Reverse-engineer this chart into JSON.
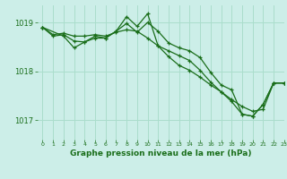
{
  "title": "Graphe pression niveau de la mer (hPa)",
  "background_color": "#cceee8",
  "grid_color": "#aaddcc",
  "line_color": "#1a6e1a",
  "xlim": [
    -0.5,
    23
  ],
  "ylim": [
    1016.6,
    1019.35
  ],
  "yticks": [
    1017,
    1018,
    1019
  ],
  "xticks": [
    0,
    1,
    2,
    3,
    4,
    5,
    6,
    7,
    8,
    9,
    10,
    11,
    12,
    13,
    14,
    15,
    16,
    17,
    18,
    19,
    20,
    21,
    22,
    23
  ],
  "series1_x": [
    0,
    1,
    2,
    3,
    4,
    5,
    6,
    7,
    8,
    9,
    10,
    11,
    12,
    13,
    14,
    15,
    16,
    17,
    18,
    19,
    20,
    21,
    22,
    23
  ],
  "series1_y": [
    1018.9,
    1018.75,
    1018.78,
    1018.72,
    1018.72,
    1018.75,
    1018.72,
    1018.8,
    1018.85,
    1018.82,
    1018.68,
    1018.52,
    1018.3,
    1018.12,
    1018.02,
    1017.88,
    1017.72,
    1017.58,
    1017.42,
    1017.28,
    1017.18,
    1017.22,
    1017.76,
    1017.76
  ],
  "series2_x": [
    0,
    1,
    2,
    3,
    4,
    5,
    6,
    7,
    8,
    9,
    10,
    11,
    12,
    13,
    14,
    15,
    16,
    17,
    18,
    19,
    20,
    21,
    22,
    23
  ],
  "series2_y": [
    1018.9,
    1018.72,
    1018.75,
    1018.62,
    1018.6,
    1018.68,
    1018.68,
    1018.82,
    1018.98,
    1018.8,
    1019.0,
    1018.82,
    1018.58,
    1018.48,
    1018.42,
    1018.28,
    1017.98,
    1017.72,
    1017.62,
    1017.12,
    1017.08,
    1017.32,
    1017.76,
    1017.76
  ],
  "series3_x": [
    0,
    2,
    3,
    4,
    5,
    6,
    7,
    8,
    9,
    10,
    11,
    12,
    13,
    14,
    15,
    16,
    17,
    18,
    19,
    20,
    21,
    22,
    23
  ],
  "series3_y": [
    1018.9,
    1018.72,
    1018.48,
    1018.6,
    1018.72,
    1018.68,
    1018.82,
    1019.12,
    1018.92,
    1019.18,
    1018.52,
    1018.42,
    1018.32,
    1018.22,
    1018.02,
    1017.78,
    1017.58,
    1017.38,
    1017.12,
    1017.08,
    1017.32,
    1017.76,
    1017.76
  ]
}
